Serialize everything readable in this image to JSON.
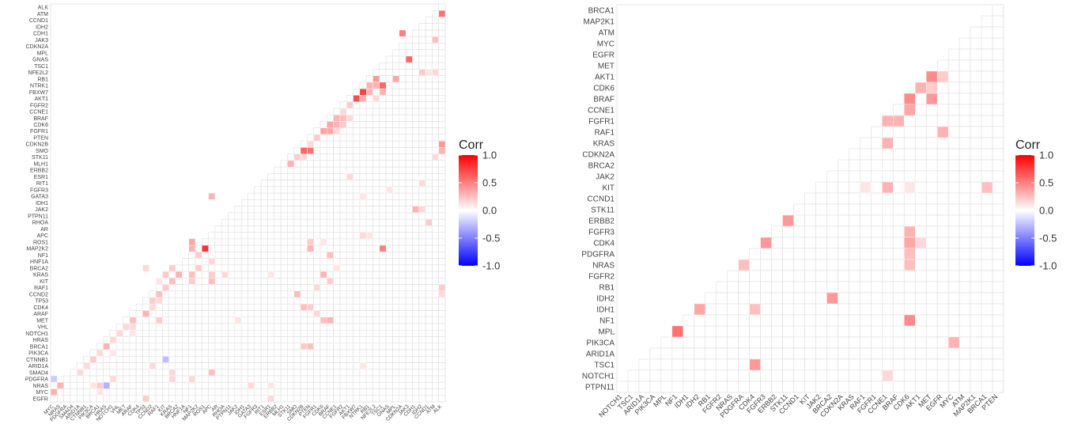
{
  "chart_data": [
    {
      "type": "heatmap",
      "triangle": "lower",
      "legend": {
        "title": "Corr",
        "ticks": [
          "1.0",
          "0.5",
          "0.0",
          "-0.5",
          "-1.0"
        ],
        "range": [
          -1,
          1
        ],
        "colors": {
          "low": "#0000FF",
          "mid": "#FFFFFF",
          "high": "#FF0000"
        }
      },
      "rows": [
        "ALK",
        "ATM",
        "CCND1",
        "IDH2",
        "CDH1",
        "JAK3",
        "CDKN2A",
        "MPL",
        "GNAS",
        "TSC1",
        "NFE2L2",
        "RB1",
        "NTRK1",
        "FBXW7",
        "AKT1",
        "FGFR2",
        "CCNE1",
        "BRAF",
        "CDK6",
        "FGFR1",
        "PTEN",
        "CDKN2B",
        "SMO",
        "STK11",
        "MLH1",
        "ERBB2",
        "ESR1",
        "RIT1",
        "FGFR3",
        "GATA3",
        "IDH1",
        "JAK2",
        "PTPN11",
        "RHOA",
        "AR",
        "APC",
        "ROS1",
        "MAP2K2",
        "NF1",
        "HNF1A",
        "BRCA2",
        "KRAS",
        "KIT",
        "RAF1",
        "CCND2",
        "TP53",
        "CDK4",
        "ARAF",
        "MET",
        "VHL",
        "NOTCH1",
        "HRAS",
        "BRCA1",
        "PIK3CA",
        "CTNNB1",
        "ARID1A",
        "SMAD4",
        "PDGFRA",
        "NRAS",
        "MYC",
        "EGFR"
      ],
      "cols": [
        "MYC",
        "NRAS",
        "PDGFRA",
        "SMAD4",
        "ARID1A",
        "CTNNB1",
        "PIK3CA",
        "BRCA1",
        "HRAS",
        "NOTCH1",
        "VHL",
        "MET",
        "ARAF",
        "CDK4",
        "TP53",
        "CCND2",
        "RAF1",
        "KIT",
        "KRAS",
        "BRCA2",
        "HNF1A",
        "NF1",
        "MAP2K2",
        "ROS1",
        "APC",
        "AR",
        "RHOA",
        "PTPN11",
        "JAK2",
        "IDH1",
        "GATA3",
        "FGFR3",
        "RIT1",
        "ESR1",
        "ERBB2",
        "MLH1",
        "STK11",
        "SMO",
        "CDKN2B",
        "PTEN",
        "FGFR1",
        "CDK6",
        "BRAF",
        "CCNE1",
        "FGFR2",
        "AKT1",
        "FBXW7",
        "NTRK1",
        "RB1",
        "NFE2L2",
        "TSC1",
        "GNAS",
        "MPL",
        "CDKN2A",
        "JAK3",
        "CDH1",
        "IDH2",
        "CCND1",
        "ATM",
        "ALK"
      ],
      "cells": [
        [
          "ATM",
          "ALK",
          0.55
        ],
        [
          "CDH1",
          "CDKN2A",
          0.5
        ],
        [
          "JAK3",
          "ATM",
          0.25
        ],
        [
          "GNAS",
          "JAK3",
          0.6
        ],
        [
          "NFE2L2",
          "IDH2",
          0.2
        ],
        [
          "NFE2L2",
          "ATM",
          0.15
        ],
        [
          "NFE2L2",
          "CCND1",
          0.1
        ],
        [
          "RB1",
          "NFE2L2",
          0.4
        ],
        [
          "RB1",
          "MPL",
          0.35
        ],
        [
          "NTRK1",
          "NFE2L2",
          0.3
        ],
        [
          "NTRK1",
          "TSC1",
          0.6
        ],
        [
          "NTRK1",
          "RB1",
          0.3
        ],
        [
          "FBXW7",
          "NTRK1",
          0.75
        ],
        [
          "FBXW7",
          "TSC1",
          0.3
        ],
        [
          "FBXW7",
          "RB1",
          0.3
        ],
        [
          "AKT1",
          "FBXW7",
          0.7
        ],
        [
          "AKT1",
          "NTRK1",
          0.3
        ],
        [
          "AKT1",
          "NFE2L2",
          0.15
        ],
        [
          "FGFR2",
          "AKT1",
          0.2
        ],
        [
          "CCNE1",
          "FGFR2",
          0.15
        ],
        [
          "BRAF",
          "CCNE1",
          0.3
        ],
        [
          "BRAF",
          "FGFR2",
          0.25
        ],
        [
          "BRAF",
          "AKT1",
          0.15
        ],
        [
          "CDK6",
          "BRAF",
          0.35
        ],
        [
          "CDK6",
          "CCNE1",
          0.3
        ],
        [
          "CDK6",
          "FGFR2",
          0.2
        ],
        [
          "FGFR1",
          "CDK6",
          0.35
        ],
        [
          "FGFR1",
          "BRAF",
          0.35
        ],
        [
          "FGFR1",
          "CCNE1",
          0.15
        ],
        [
          "PTEN",
          "FGFR1",
          0.2
        ],
        [
          "CDKN2B",
          "PTEN",
          0.15
        ],
        [
          "CDKN2B",
          "ALK",
          0.4
        ],
        [
          "SMO",
          "CDKN2B",
          0.6
        ],
        [
          "SMO",
          "PTEN",
          0.55
        ],
        [
          "SMO",
          "ALK",
          0.3
        ],
        [
          "SMO",
          "MAP2K1",
          0.3
        ],
        [
          "STK11",
          "SMO",
          0.2
        ],
        [
          "STK11",
          "CDKN2B",
          0.15
        ],
        [
          "STK11",
          "ATM",
          0.15
        ],
        [
          "MLH1",
          "STK11",
          0.3
        ],
        [
          "ESR1",
          "AKT1",
          0.15
        ],
        [
          "RIT1",
          "IDH2",
          0.15
        ],
        [
          "FGFR3",
          "GNAS",
          0.1
        ],
        [
          "GATA3",
          "APC",
          0.3
        ],
        [
          "GATA3",
          "NTRK1",
          0.1
        ],
        [
          "JAK2",
          "CDH1",
          0.3
        ],
        [
          "JAK2",
          "IDH2",
          0.15
        ],
        [
          "RHOA",
          "CCND1",
          0.2
        ],
        [
          "APC",
          "NTRK1",
          0.15
        ],
        [
          "APC",
          "RB1",
          0.1
        ],
        [
          "ROS1",
          "NF1",
          0.35
        ],
        [
          "ROS1",
          "PTEN",
          0.2
        ],
        [
          "ROS1",
          "CDK6",
          0.1
        ],
        [
          "MAP2K2",
          "ROS1",
          0.8
        ],
        [
          "MAP2K2",
          "NF1",
          0.3
        ],
        [
          "MAP2K2",
          "PTEN",
          0.3
        ],
        [
          "MAP2K2",
          "TSC1",
          0.5
        ],
        [
          "NF1",
          "MAP2K2",
          0.2
        ],
        [
          "NF1",
          "BRAF",
          0.25
        ],
        [
          "HNF1A",
          "APC",
          0.15
        ],
        [
          "BRCA2",
          "KRAS",
          0.2
        ],
        [
          "BRCA2",
          "MAP2K2",
          0.2
        ],
        [
          "BRCA2",
          "TP53",
          0.15
        ],
        [
          "BRCA2",
          "CCNE1",
          0.1
        ],
        [
          "KRAS",
          "BRCA2",
          0.3
        ],
        [
          "KRAS",
          "APC",
          0.2
        ],
        [
          "KRAS",
          "NF1",
          0.25
        ],
        [
          "KRAS",
          "CDK6",
          0.3
        ],
        [
          "KRAS",
          "KIT",
          0.2
        ],
        [
          "KRAS",
          "RHOA",
          0.15
        ],
        [
          "KRAS",
          "ESR1",
          0.1
        ],
        [
          "KIT",
          "KRAS",
          0.25
        ],
        [
          "KIT",
          "NF1",
          0.2
        ],
        [
          "KIT",
          "APC",
          0.25
        ],
        [
          "KIT",
          "BRAF",
          0.2
        ],
        [
          "KIT",
          "RAF1",
          0.1
        ],
        [
          "RAF1",
          "KIT",
          0.2
        ],
        [
          "RAF1",
          "ALK",
          0.2
        ],
        [
          "RAF1",
          "FGFR1",
          0.15
        ],
        [
          "CCND2",
          "RAF1",
          0.25
        ],
        [
          "CCND2",
          "ALK",
          0.15
        ],
        [
          "CCND2",
          "SMO",
          0.25
        ],
        [
          "TP53",
          "CCND2",
          0.2
        ],
        [
          "TP53",
          "RAF1",
          0.15
        ],
        [
          "CDK4",
          "CCND2",
          0.15
        ],
        [
          "CDK4",
          "CDKN2B",
          0.25
        ],
        [
          "CDK4",
          "PTEN",
          0.2
        ],
        [
          "ARAF",
          "TP53",
          0.3
        ],
        [
          "ARAF",
          "FGFR1",
          0.15
        ],
        [
          "MET",
          "ARAF",
          0.25
        ],
        [
          "MET",
          "RAF1",
          0.2
        ],
        [
          "MET",
          "BRAF",
          0.3
        ],
        [
          "MET",
          "CDK6",
          0.25
        ],
        [
          "MET",
          "JAK2",
          0.1
        ],
        [
          "VHL",
          "MET",
          0.15
        ],
        [
          "VHL",
          "ARAF",
          0.15
        ],
        [
          "NOTCH1",
          "VHL",
          0.15
        ],
        [
          "NOTCH1",
          "ARAF",
          0.1
        ],
        [
          "HRAS",
          "NOTCH1",
          0.15
        ],
        [
          "BRCA1",
          "HRAS",
          0.3
        ],
        [
          "BRCA1",
          "PTEN",
          0.25
        ],
        [
          "BRCA1",
          "CDKN2B",
          0.2
        ],
        [
          "PIK3CA",
          "BRCA1",
          0.15
        ],
        [
          "PIK3CA",
          "NOTCH1",
          0.1
        ],
        [
          "CTNNB1",
          "PIK3CA",
          0.2
        ],
        [
          "CTNNB1",
          "KIT",
          -0.25
        ],
        [
          "ARID1A",
          "CTNNB1",
          0.15
        ],
        [
          "ARID1A",
          "CCND2",
          0.15
        ],
        [
          "ARID1A",
          "NTRK1",
          0.1
        ],
        [
          "SMAD4",
          "ARID1A",
          0.15
        ],
        [
          "SMAD4",
          "KRAS",
          0.15
        ],
        [
          "SMAD4",
          "APC",
          0.25
        ],
        [
          "PDGFRA",
          "MYC",
          -0.2
        ],
        [
          "PDGFRA",
          "NOTCH1",
          0.15
        ],
        [
          "PDGFRA",
          "KRAS",
          0.15
        ],
        [
          "PDGFRA",
          "NF1",
          0.15
        ],
        [
          "NRAS",
          "NRAS",
          0.3
        ],
        [
          "NRAS",
          "HRAS",
          -0.3
        ],
        [
          "NRAS",
          "PIK3CA",
          0.1
        ],
        [
          "NRAS",
          "BRCA1",
          0.2
        ],
        [
          "NRAS",
          "GATA3",
          0.15
        ],
        [
          "NRAS",
          "ESR1",
          0.1
        ],
        [
          "MYC",
          "MYC",
          0.3
        ],
        [
          "MYC",
          "BRCA1",
          0.1
        ],
        [
          "EGFR",
          "TP53",
          0.2
        ],
        [
          "EGFR",
          "ESR1",
          0.15
        ]
      ]
    },
    {
      "type": "heatmap",
      "triangle": "lower",
      "legend": {
        "title": "Corr",
        "ticks": [
          "1.0",
          "0.5",
          "0.0",
          "-0.5",
          "-1.0"
        ],
        "range": [
          -1,
          1
        ],
        "colors": {
          "low": "#0000FF",
          "mid": "#FFFFFF",
          "high": "#FF0000"
        }
      },
      "rows": [
        "BRCA1",
        "MAP2K1",
        "ATM",
        "MYC",
        "EGFR",
        "MET",
        "AKT1",
        "CDK6",
        "BRAF",
        "CCNE1",
        "FGFR1",
        "RAF1",
        "KRAS",
        "CDKN2A",
        "BRCA2",
        "JAK2",
        "KIT",
        "CCND1",
        "STK11",
        "ERBB2",
        "FGFR3",
        "CDK4",
        "PDGFRA",
        "NRAS",
        "FGFR2",
        "RB1",
        "IDH2",
        "IDH1",
        "NF1",
        "MPL",
        "PIK3CA",
        "ARID1A",
        "TSC1",
        "NOTCH1",
        "PTPN11"
      ],
      "cols": [
        "NOTCH1",
        "TSC1",
        "ARID1A",
        "PIK3CA",
        "MPL",
        "NF1",
        "IDH1",
        "IDH2",
        "RB1",
        "FGFR2",
        "NRAS",
        "PDGFRA",
        "CDK4",
        "FGFR3",
        "ERBB2",
        "STK11",
        "CCND1",
        "KIT",
        "JAK2",
        "BRCA2",
        "CDKN2A",
        "KRAS",
        "RAF1",
        "FGFR1",
        "CCNE1",
        "BRAF",
        "CDK6",
        "AKT1",
        "MET",
        "EGFR",
        "MYC",
        "ATM",
        "MAP2K1",
        "BRCA1",
        "PTEN"
      ],
      "cells": [
        [
          "AKT1",
          "MET",
          0.45
        ],
        [
          "AKT1",
          "EGFR",
          0.2
        ],
        [
          "CDK6",
          "AKT1",
          0.3
        ],
        [
          "CDK6",
          "MET",
          0.2
        ],
        [
          "BRAF",
          "CDK6",
          0.45
        ],
        [
          "BRAF",
          "MET",
          0.4
        ],
        [
          "CCNE1",
          "CDK6",
          0.35
        ],
        [
          "FGFR1",
          "CCNE1",
          0.3
        ],
        [
          "FGFR1",
          "BRAF",
          0.3
        ],
        [
          "RAF1",
          "EGFR",
          0.3
        ],
        [
          "KRAS",
          "CCNE1",
          0.3
        ],
        [
          "KIT",
          "RAF1",
          0.1
        ],
        [
          "KIT",
          "CCNE1",
          0.3
        ],
        [
          "KIT",
          "CDK6",
          0.1
        ],
        [
          "KIT",
          "BRCA1",
          0.25
        ],
        [
          "ERBB2",
          "STK11",
          0.4
        ],
        [
          "FGFR3",
          "CDK6",
          0.3
        ],
        [
          "CDK4",
          "FGFR3",
          0.4
        ],
        [
          "CDK4",
          "CDK6",
          0.35
        ],
        [
          "CDK4",
          "AKT1",
          0.15
        ],
        [
          "PDGFRA",
          "CDK6",
          0.25
        ],
        [
          "NRAS",
          "PDGFRA",
          0.25
        ],
        [
          "NRAS",
          "CDK6",
          0.25
        ],
        [
          "IDH2",
          "BRCA2",
          0.4
        ],
        [
          "IDH1",
          "IDH2",
          0.35
        ],
        [
          "IDH1",
          "CDK4",
          0.25
        ],
        [
          "NF1",
          "CDK6",
          0.45
        ],
        [
          "MPL",
          "NF1",
          0.55
        ],
        [
          "PIK3CA",
          "MYC",
          0.3
        ],
        [
          "TSC1",
          "CDK4",
          0.4
        ],
        [
          "NOTCH1",
          "CCNE1",
          0.15
        ]
      ]
    }
  ]
}
